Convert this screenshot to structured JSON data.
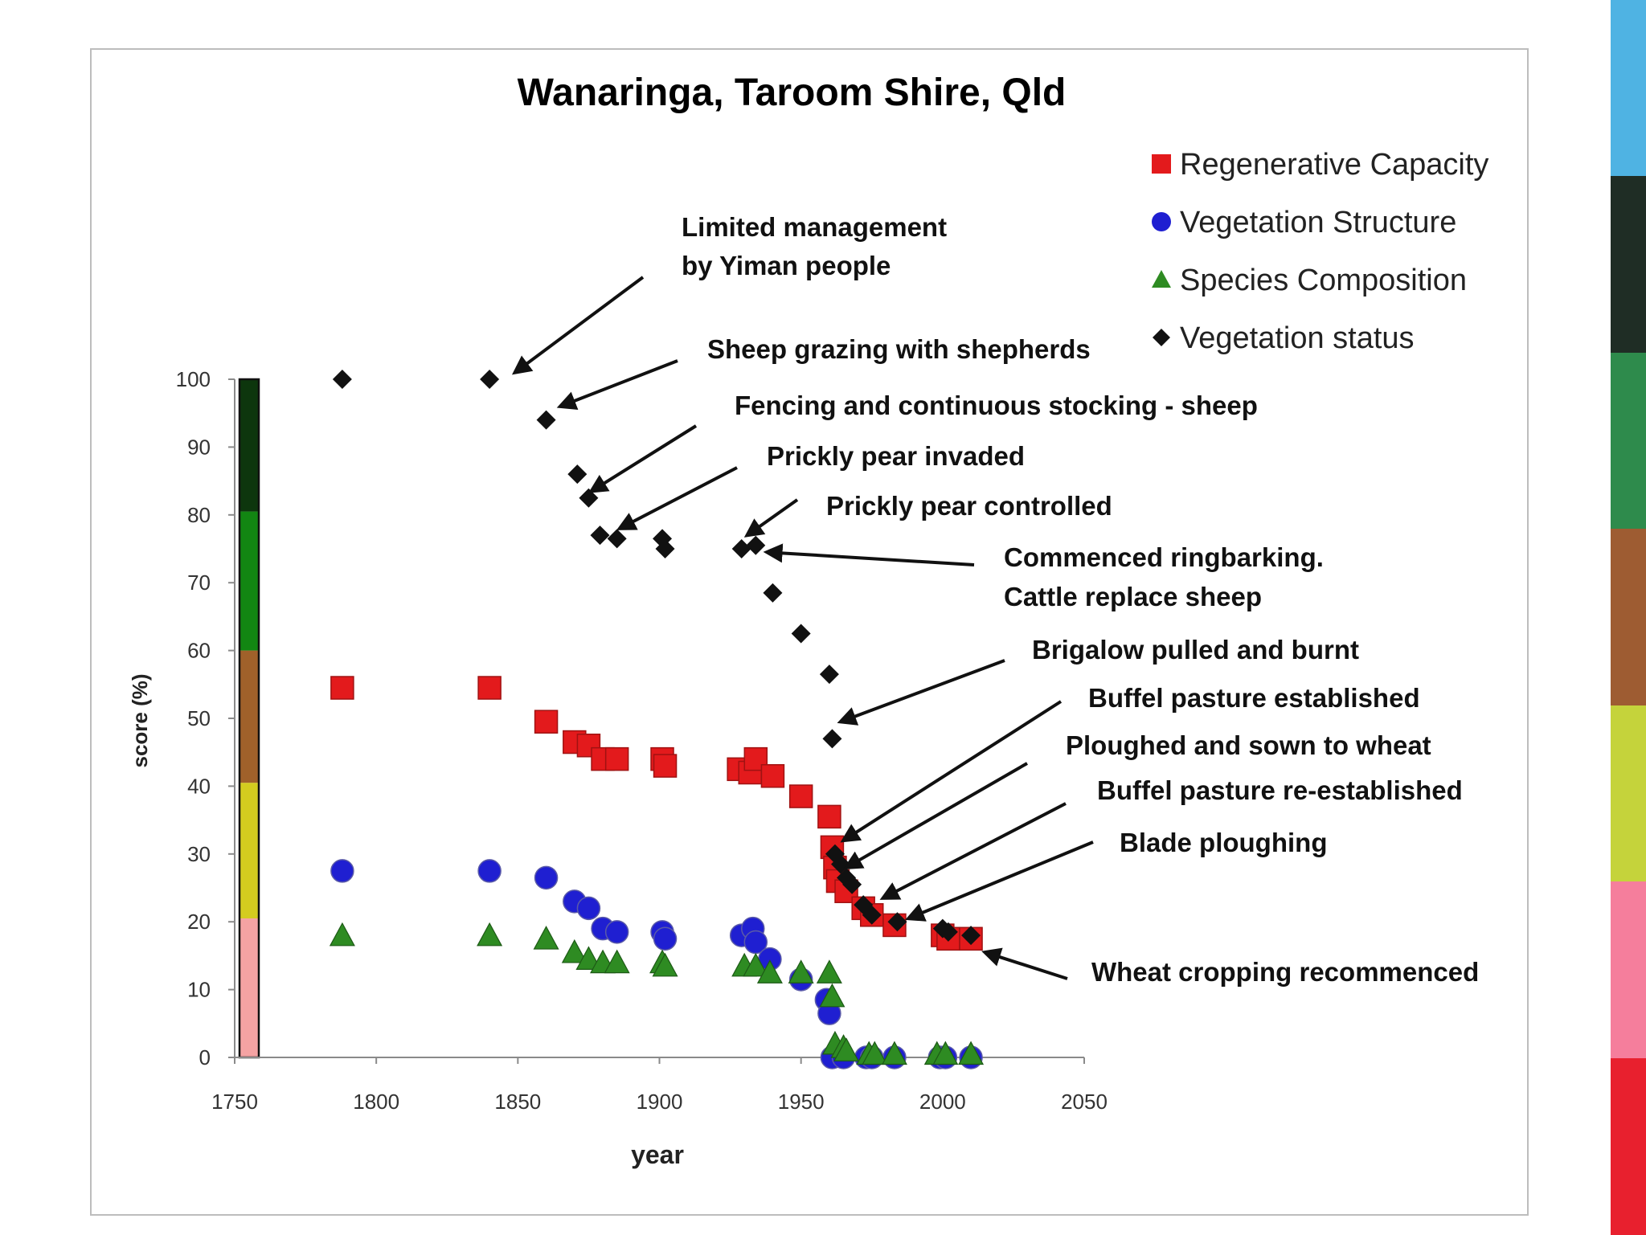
{
  "chart_data": {
    "type": "scatter",
    "title": "Wanaringa, Taroom Shire, Qld",
    "xlabel": "year",
    "ylabel": "score (%)",
    "xlim": [
      1750,
      2050
    ],
    "ylim": [
      0,
      100
    ],
    "xticks": [
      1750,
      1800,
      1850,
      1900,
      1950,
      2000,
      2050
    ],
    "yticks": [
      0,
      10,
      20,
      30,
      40,
      50,
      60,
      70,
      80,
      90,
      100
    ],
    "series": [
      {
        "name": "Regenerative Capacity",
        "marker": "square",
        "color": "#e31a1c",
        "points": [
          [
            1788,
            54.5
          ],
          [
            1840,
            54.5
          ],
          [
            1860,
            49.5
          ],
          [
            1870,
            46.5
          ],
          [
            1875,
            46
          ],
          [
            1880,
            44
          ],
          [
            1885,
            44
          ],
          [
            1901,
            44
          ],
          [
            1902,
            43
          ],
          [
            1928,
            42.5
          ],
          [
            1932,
            42
          ],
          [
            1934,
            44
          ],
          [
            1940,
            41.5
          ],
          [
            1950,
            38.5
          ],
          [
            1960,
            35.5
          ],
          [
            1961,
            31
          ],
          [
            1962,
            28
          ],
          [
            1963,
            26
          ],
          [
            1966,
            24.5
          ],
          [
            1972,
            22
          ],
          [
            1975,
            21
          ],
          [
            1983,
            19.5
          ],
          [
            2000,
            18
          ],
          [
            2002,
            17.5
          ],
          [
            2010,
            17.5
          ]
        ]
      },
      {
        "name": "Vegetation Structure",
        "marker": "circle",
        "color": "#1f1fd1",
        "points": [
          [
            1788,
            27.5
          ],
          [
            1840,
            27.5
          ],
          [
            1860,
            26.5
          ],
          [
            1870,
            23
          ],
          [
            1875,
            22
          ],
          [
            1880,
            19
          ],
          [
            1885,
            18.5
          ],
          [
            1901,
            18.5
          ],
          [
            1902,
            17.5
          ],
          [
            1929,
            18
          ],
          [
            1933,
            19
          ],
          [
            1934,
            17
          ],
          [
            1939,
            14.5
          ],
          [
            1950,
            11.5
          ],
          [
            1959,
            8.5
          ],
          [
            1960,
            6.5
          ],
          [
            1961,
            0
          ],
          [
            1965,
            0
          ],
          [
            1973,
            0
          ],
          [
            1975,
            0
          ],
          [
            1983,
            0
          ],
          [
            1999,
            0
          ],
          [
            2001,
            0
          ],
          [
            2010,
            0
          ]
        ]
      },
      {
        "name": "Species Composition",
        "marker": "triangle",
        "color": "#2e8b22",
        "points": [
          [
            1788,
            18
          ],
          [
            1840,
            18
          ],
          [
            1860,
            17.5
          ],
          [
            1870,
            15.5
          ],
          [
            1875,
            14.5
          ],
          [
            1880,
            14
          ],
          [
            1885,
            14
          ],
          [
            1901,
            14
          ],
          [
            1902,
            13.5
          ],
          [
            1930,
            13.5
          ],
          [
            1934,
            13.5
          ],
          [
            1939,
            12.5
          ],
          [
            1950,
            12.5
          ],
          [
            1960,
            12.5
          ],
          [
            1961,
            9
          ],
          [
            1962,
            2
          ],
          [
            1965,
            1.5
          ],
          [
            1966,
            1
          ],
          [
            1974,
            0.5
          ],
          [
            1976,
            0.5
          ],
          [
            1983,
            0.5
          ],
          [
            1998,
            0.5
          ],
          [
            2001,
            0.5
          ],
          [
            2010,
            0.5
          ]
        ]
      },
      {
        "name": "Vegetation status",
        "marker": "diamond",
        "color": "#111111",
        "points": [
          [
            1788,
            100
          ],
          [
            1840,
            100
          ],
          [
            1860,
            94
          ],
          [
            1871,
            86
          ],
          [
            1875,
            82.5
          ],
          [
            1879,
            77
          ],
          [
            1885,
            76.5
          ],
          [
            1901,
            76.5
          ],
          [
            1902,
            75
          ],
          [
            1929,
            75
          ],
          [
            1934,
            75.5
          ],
          [
            1940,
            68.5
          ],
          [
            1950,
            62.5
          ],
          [
            1960,
            56.5
          ],
          [
            1961,
            47
          ],
          [
            1962,
            30
          ],
          [
            1964,
            28.5
          ],
          [
            1966,
            26.5
          ],
          [
            1968,
            25.5
          ],
          [
            1972,
            22.5
          ],
          [
            1975,
            21
          ],
          [
            1984,
            20
          ],
          [
            2000,
            19
          ],
          [
            2002,
            18.5
          ],
          [
            2010,
            18
          ]
        ]
      }
    ],
    "legend": {
      "placement": "top-right",
      "items": [
        {
          "label": "Regenerative Capacity",
          "marker": "square",
          "color": "#e31a1c"
        },
        {
          "label": "Vegetation Structure",
          "marker": "circle",
          "color": "#1f1fd1"
        },
        {
          "label": "Species Composition",
          "marker": "triangle",
          "color": "#2e8b22"
        },
        {
          "label": "Vegetation status",
          "marker": "diamond",
          "color": "#111111"
        }
      ]
    },
    "condition_bar": [
      {
        "from": 0,
        "to": 20.5,
        "color": "#f5a3a3"
      },
      {
        "from": 20.5,
        "to": 40.5,
        "color": "#d4cc1f"
      },
      {
        "from": 40.5,
        "to": 60,
        "color": "#a0612a"
      },
      {
        "from": 60,
        "to": 80.5,
        "color": "#128612"
      },
      {
        "from": 80.5,
        "to": 100,
        "color": "#0d360d"
      }
    ],
    "annotations": [
      {
        "lines": [
          "Limited management",
          "by Yiman people"
        ],
        "target": [
          1849,
          101
        ]
      },
      {
        "lines": [
          "Sheep grazing with shepherds"
        ],
        "target": [
          1865,
          96
        ]
      },
      {
        "lines": [
          "Fencing and continuous stocking - sheep"
        ],
        "target": [
          1876,
          83.5
        ]
      },
      {
        "lines": [
          "Prickly pear invaded"
        ],
        "target": [
          1886,
          78
        ]
      },
      {
        "lines": [
          "Prickly pear controlled"
        ],
        "target": [
          1931,
          77
        ]
      },
      {
        "lines": [
          "Commenced ringbarking.",
          "Cattle replace sheep"
        ],
        "target": [
          1938,
          74.5
        ]
      },
      {
        "lines": [
          "Brigalow pulled and burnt"
        ],
        "target": [
          1964,
          49.5
        ]
      },
      {
        "lines": [
          "Buffel pasture established"
        ],
        "target": [
          1965,
          32
        ]
      },
      {
        "lines": [
          "Ploughed and sown to wheat"
        ],
        "target": [
          1966,
          28
        ]
      },
      {
        "lines": [
          "Buffel pasture re-established"
        ],
        "target": [
          1979,
          23.5
        ]
      },
      {
        "lines": [
          "Blade ploughing"
        ],
        "target": [
          1988,
          20.5
        ]
      },
      {
        "lines": [
          "Wheat cropping recommenced"
        ],
        "target": [
          2015,
          15.5
        ]
      }
    ]
  },
  "side_strip": {
    "colors": [
      "#4fb3e3",
      "#1f2d25",
      "#2e8b4c",
      "#9e5c32",
      "#c5d33b",
      "#f57e9c",
      "#e8202e"
    ]
  }
}
